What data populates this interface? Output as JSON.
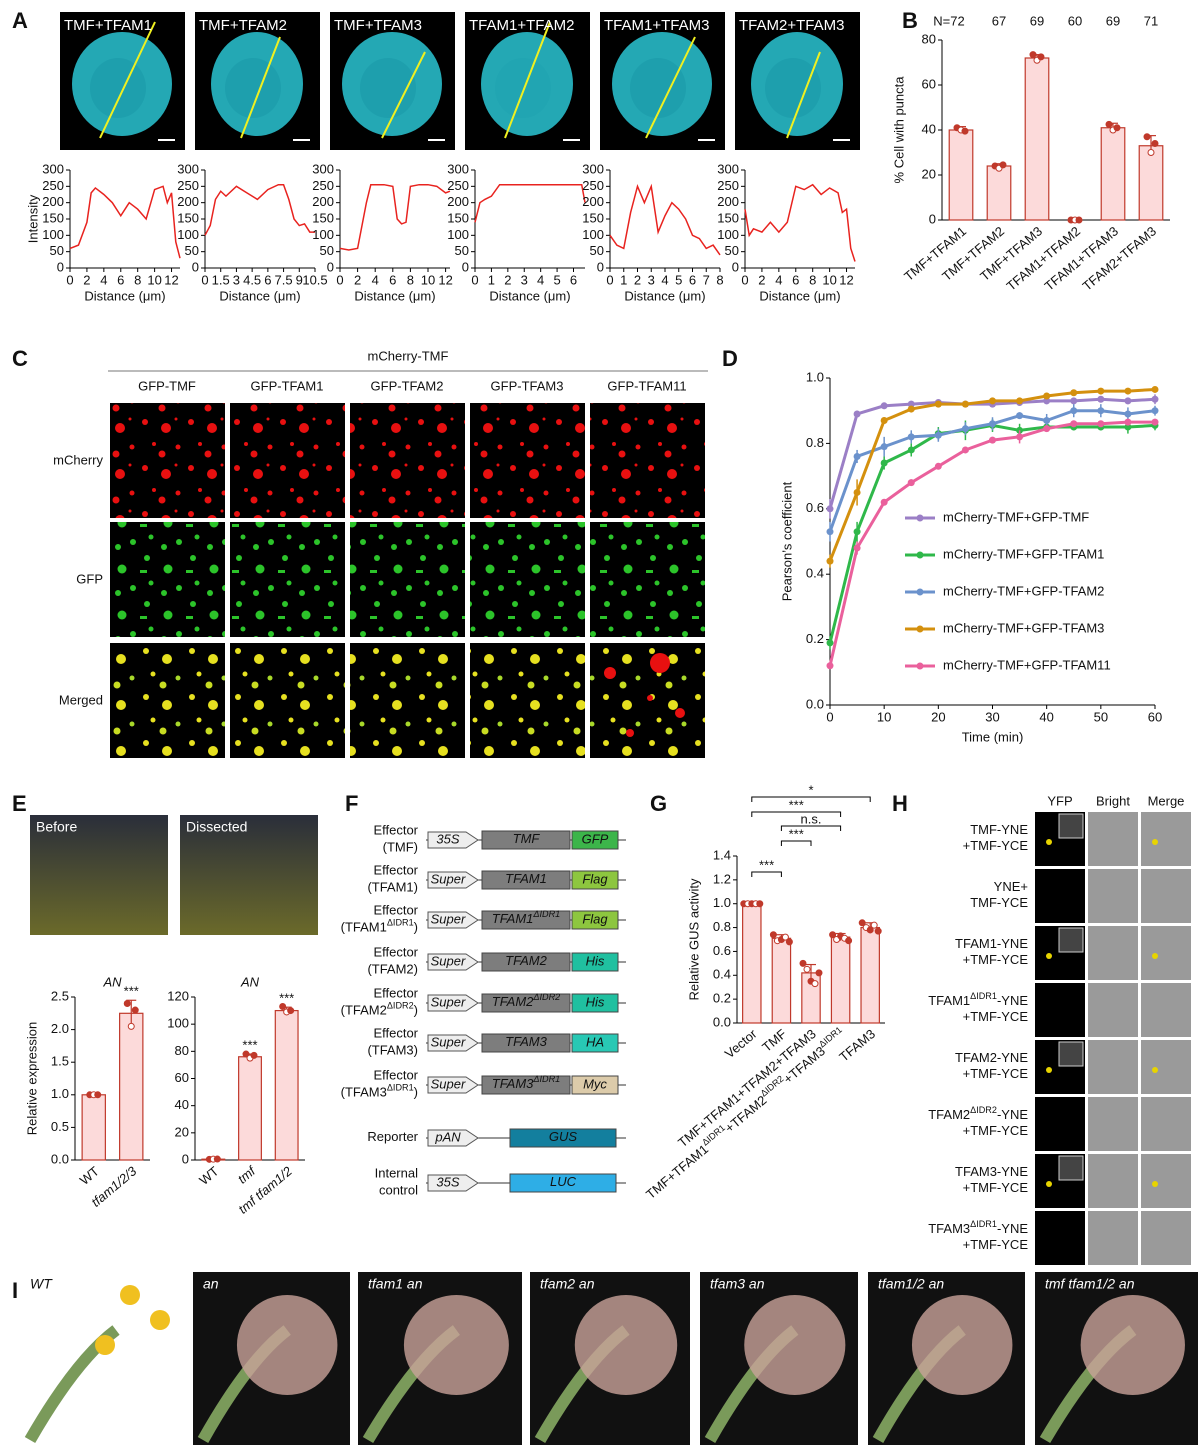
{
  "figure": {
    "panel_letters": [
      "A",
      "B",
      "C",
      "D",
      "E",
      "F",
      "G",
      "H",
      "I"
    ]
  },
  "panel_a": {
    "images": [
      "TMF+TFAM1",
      "TMF+TFAM2",
      "TMF+TFAM3",
      "TFAM1+TFAM2",
      "TFAM1+TFAM3",
      "TFAM2+TFAM3"
    ]
  },
  "panel_c": {
    "header": "mCherry-TMF",
    "columns": [
      "GFP-TMF",
      "GFP-TFAM1",
      "GFP-TFAM2",
      "GFP-TFAM3",
      "GFP-TFAM11"
    ],
    "rows": [
      "mCherry",
      "GFP",
      "Merged"
    ]
  },
  "panel_e": {
    "images": [
      "Before",
      "Dissected"
    ]
  },
  "panel_f": {
    "rows": [
      {
        "label": [
          [
            "Effector"
          ],
          [
            "(TMF)"
          ]
        ],
        "promoter": "35S",
        "gene": [
          "TMF"
        ],
        "tag": "GFP",
        "color": "#3cb54a"
      },
      {
        "label": [
          [
            "Effector"
          ],
          [
            "(TFAM1)"
          ]
        ],
        "promoter": "Super",
        "gene": [
          "TFAM1"
        ],
        "tag": "Flag",
        "color": "#8dc63f"
      },
      {
        "label": [
          [
            "Effector"
          ],
          [
            "(TFAM1",
            {
              "sup": "ΔIDR1"
            },
            ")"
          ]
        ],
        "promoter": "Super",
        "gene": [
          "TFAM1",
          {
            "sup": "ΔIDR1"
          }
        ],
        "tag": "Flag",
        "color": "#8dc63f"
      },
      {
        "label": [
          [
            "Effector"
          ],
          [
            "(TFAM2)"
          ]
        ],
        "promoter": "Super",
        "gene": [
          "TFAM2"
        ],
        "tag": "His",
        "color": "#20c0a0"
      },
      {
        "label": [
          [
            "Effector"
          ],
          [
            "(TFAM2",
            {
              "sup": "ΔIDR2"
            },
            ")"
          ]
        ],
        "promoter": "Super",
        "gene": [
          "TFAM2",
          {
            "sup": "ΔIDR2"
          }
        ],
        "tag": "His",
        "color": "#20c0a0"
      },
      {
        "label": [
          [
            "Effector"
          ],
          [
            "(TFAM3)"
          ]
        ],
        "promoter": "Super",
        "gene": [
          "TFAM3"
        ],
        "tag": "HA",
        "color": "#28c8b4"
      },
      {
        "label": [
          [
            "Effector"
          ],
          [
            "(TFAM3",
            {
              "sup": "ΔIDR1"
            },
            ")"
          ]
        ],
        "promoter": "Super",
        "gene": [
          "TFAM3",
          {
            "sup": "ΔIDR1"
          }
        ],
        "tag": "Myc",
        "color": "#dccbaa"
      },
      {
        "label": [
          [
            "Reporter"
          ]
        ],
        "promoter": "pAN",
        "gene": [
          "GUS"
        ],
        "color": "#137f9e"
      },
      {
        "label": [
          [
            "Internal"
          ],
          [
            "control"
          ]
        ],
        "promoter": "35S",
        "gene": [
          "LUC"
        ],
        "color": "#2eaee6"
      }
    ]
  },
  "panel_h": {
    "columns": [
      "YFP",
      "Bright",
      "Merge"
    ],
    "rows": [
      [
        [
          "TMF-YNE"
        ],
        [
          "+TMF-YCE"
        ]
      ],
      [
        [
          "YNE+"
        ],
        [
          "TMF-YCE"
        ]
      ],
      [
        [
          "TFAM1-YNE"
        ],
        [
          "+TMF-YCE"
        ]
      ],
      [
        [
          "TFAM1",
          {
            "sup": "ΔIDR1"
          },
          "-YNE"
        ],
        [
          "+TMF-YCE"
        ]
      ],
      [
        [
          "TFAM2-YNE"
        ],
        [
          "+TMF-YCE"
        ]
      ],
      [
        [
          "TFAM2",
          {
            "sup": "ΔIDR2"
          },
          "-YNE"
        ],
        [
          "+TMF-YCE"
        ]
      ],
      [
        [
          "TFAM3-YNE"
        ],
        [
          "+TMF-YCE"
        ]
      ],
      [
        [
          "TFAM3",
          {
            "sup": "ΔIDR1"
          },
          "-YNE"
        ],
        [
          "+TMF-YCE"
        ]
      ]
    ]
  },
  "panel_i": {
    "images": [
      "WT",
      "an",
      "tfam1 an",
      "tfam2 an",
      "tfam3 an",
      "tfam1/2 an",
      "tmf tfam1/2 an"
    ]
  },
  "chart_data": [
    {
      "type": "line",
      "ylabel": "Intensity",
      "xlabel": "Distance (μm)",
      "xlim": [
        0,
        13
      ],
      "xticks": [
        0,
        2,
        4,
        6,
        8,
        10,
        12
      ],
      "ylim": [
        0,
        300
      ],
      "yticks": [
        0,
        50,
        100,
        150,
        200,
        250,
        300
      ],
      "x": [
        0,
        1,
        2,
        2.5,
        3,
        4,
        5,
        6,
        7,
        8,
        9,
        10,
        11,
        11.5,
        12,
        12.5,
        13
      ],
      "series": [
        {
          "color": "#e8231f",
          "values": [
            60,
            70,
            140,
            230,
            245,
            225,
            200,
            160,
            200,
            180,
            150,
            240,
            250,
            200,
            230,
            80,
            30
          ]
        }
      ]
    },
    {
      "type": "line",
      "xlabel": "Distance (μm)",
      "xlim": [
        0,
        10.5
      ],
      "xticks": [
        0,
        1.5,
        3,
        4.5,
        6,
        7.5,
        9,
        10.5
      ],
      "ylim": [
        0,
        300
      ],
      "yticks": [
        0,
        50,
        100,
        150,
        200,
        250,
        300
      ],
      "x": [
        0,
        0.5,
        1,
        1.5,
        2,
        3,
        4,
        5,
        6,
        7,
        7.5,
        8,
        8.5,
        9,
        9.5,
        10,
        10.5
      ],
      "series": [
        {
          "color": "#e8231f",
          "values": [
            100,
            130,
            210,
            235,
            220,
            250,
            230,
            210,
            240,
            255,
            255,
            210,
            150,
            130,
            135,
            110,
            110
          ]
        }
      ]
    },
    {
      "type": "line",
      "xlabel": "Distance (μm)",
      "xlim": [
        0,
        12.5
      ],
      "xticks": [
        0,
        2,
        4,
        6,
        8,
        10,
        12
      ],
      "ylim": [
        0,
        300
      ],
      "yticks": [
        0,
        50,
        100,
        150,
        200,
        250,
        300
      ],
      "x": [
        0,
        1,
        2,
        3,
        3.5,
        4,
        5,
        6,
        6.5,
        7,
        7.5,
        8,
        9,
        10,
        11,
        12,
        12.5
      ],
      "series": [
        {
          "color": "#e8231f",
          "values": [
            60,
            55,
            60,
            200,
            255,
            255,
            255,
            250,
            150,
            135,
            140,
            250,
            255,
            255,
            250,
            230,
            235
          ]
        }
      ]
    },
    {
      "type": "line",
      "xlabel": "Distance (μm)",
      "xlim": [
        0,
        6.7
      ],
      "xticks": [
        0,
        1,
        2,
        3,
        4,
        5,
        6
      ],
      "ylim": [
        0,
        300
      ],
      "yticks": [
        0,
        50,
        100,
        150,
        200,
        250,
        300
      ],
      "x": [
        0,
        0.3,
        0.6,
        1,
        1.5,
        2,
        3,
        4,
        5,
        6,
        6.5,
        6.7
      ],
      "series": [
        {
          "color": "#e8231f",
          "values": [
            140,
            200,
            210,
            220,
            255,
            255,
            255,
            255,
            255,
            255,
            255,
            200
          ]
        }
      ]
    },
    {
      "type": "line",
      "xlabel": "Distance (μm)",
      "xlim": [
        0,
        8
      ],
      "xticks": [
        0,
        1,
        2,
        3,
        4,
        5,
        6,
        7,
        8
      ],
      "ylim": [
        0,
        300
      ],
      "yticks": [
        0,
        50,
        100,
        150,
        200,
        250,
        300
      ],
      "x": [
        0,
        0.5,
        1,
        1.5,
        2,
        2.5,
        3,
        3.5,
        4,
        4.5,
        5,
        5.5,
        6,
        6.5,
        7,
        7.5,
        8
      ],
      "series": [
        {
          "color": "#e8231f",
          "values": [
            100,
            70,
            60,
            170,
            250,
            200,
            250,
            110,
            160,
            200,
            180,
            150,
            100,
            90,
            60,
            70,
            40
          ]
        }
      ]
    },
    {
      "type": "line",
      "xlabel": "Distance (μm)",
      "xlim": [
        0,
        13
      ],
      "xticks": [
        0,
        2,
        4,
        6,
        8,
        10,
        12
      ],
      "ylim": [
        0,
        300
      ],
      "yticks": [
        0,
        50,
        100,
        150,
        200,
        250,
        300
      ],
      "x": [
        0,
        0.5,
        1,
        2,
        3,
        4,
        5,
        6,
        7,
        8,
        9,
        10,
        11,
        11.5,
        12,
        12.5,
        13
      ],
      "series": [
        {
          "color": "#e8231f",
          "values": [
            180,
            100,
            120,
            110,
            140,
            110,
            140,
            250,
            240,
            255,
            225,
            245,
            230,
            170,
            180,
            60,
            20
          ]
        }
      ]
    },
    {
      "type": "bar",
      "ylabel": "% Cell with puncta",
      "n_labels": [
        "N=72",
        "67",
        "69",
        "60",
        "69",
        "71"
      ],
      "categories": [
        "TMF+TFAM1",
        "TMF+TFAM2",
        "TMF+TFAM3",
        "TFAM1+TFAM2",
        "TFAM1+TFAM3",
        "TFAM2+TFAM3"
      ],
      "values": [
        40,
        24,
        72,
        0,
        41,
        33
      ],
      "errors": [
        1.5,
        1,
        1.5,
        0,
        2,
        4.5
      ],
      "points": [
        [
          41,
          40,
          39.5
        ],
        [
          24,
          23,
          24.5
        ],
        [
          73.5,
          71,
          72.5
        ],
        [
          0,
          0,
          0
        ],
        [
          42.5,
          40,
          41
        ],
        [
          37,
          30,
          34
        ]
      ],
      "color": "#fcdada",
      "edge_color": "#c0392b",
      "ylim": [
        0,
        80
      ],
      "yticks": [
        0,
        20,
        40,
        60,
        80
      ]
    },
    {
      "type": "line",
      "ylabel": "Pearson’s coefficient",
      "xlabel": "Time (min)",
      "xlim": [
        0,
        60
      ],
      "xticks": [
        0,
        10,
        20,
        30,
        40,
        50,
        60
      ],
      "ylim": [
        0,
        1
      ],
      "yticks": [
        {
          "value": 0,
          "label": "0.0"
        },
        0.2,
        0.4,
        0.6,
        0.8,
        {
          "value": 1,
          "label": "1.0"
        }
      ],
      "markers": true,
      "x": [
        0,
        5,
        10,
        15,
        20,
        25,
        30,
        35,
        40,
        45,
        50,
        55,
        60
      ],
      "series": [
        {
          "name": "mCherry-TMF+GFP-TMF",
          "color": "#9b7fc6",
          "values": [
            0.6,
            0.89,
            0.915,
            0.92,
            0.925,
            0.92,
            0.92,
            0.925,
            0.93,
            0.93,
            0.935,
            0.93,
            0.935
          ],
          "errors": [
            0.03,
            0.01,
            0.01,
            0.01,
            0.005,
            0.01,
            0.01,
            0.01,
            0.01,
            0.01,
            0.01,
            0.01,
            0.015
          ]
        },
        {
          "name": "mCherry-TMF+GFP-TFAM1",
          "color": "#2fb84a",
          "values": [
            0.19,
            0.53,
            0.74,
            0.78,
            0.83,
            0.84,
            0.855,
            0.84,
            0.85,
            0.85,
            0.85,
            0.85,
            0.855
          ],
          "errors": [
            0.02,
            0.03,
            0.02,
            0.02,
            0.02,
            0.03,
            0.02,
            0.02,
            0.01,
            0.01,
            0.01,
            0.02,
            0.015
          ]
        },
        {
          "name": "mCherry-TMF+GFP-TFAM2",
          "color": "#6b92cc",
          "values": [
            0.53,
            0.76,
            0.79,
            0.82,
            0.825,
            0.845,
            0.86,
            0.885,
            0.87,
            0.9,
            0.9,
            0.89,
            0.9
          ],
          "errors": [
            0.03,
            0.02,
            0.03,
            0.02,
            0.02,
            0.02,
            0.02,
            0.01,
            0.02,
            0.02,
            0.02,
            0.02,
            0.015
          ]
        },
        {
          "name": "mCherry-TMF+GFP-TFAM3",
          "color": "#d4900e",
          "values": [
            0.44,
            0.65,
            0.87,
            0.905,
            0.92,
            0.92,
            0.93,
            0.93,
            0.945,
            0.955,
            0.96,
            0.96,
            0.965
          ],
          "errors": [
            0.02,
            0.04,
            0.01,
            0.01,
            0.01,
            0.01,
            0.01,
            0.01,
            0.01,
            0.005,
            0.005,
            0.005,
            0.005
          ]
        },
        {
          "name": "mCherry-TMF+GFP-TFAM11",
          "color": "#ea609c",
          "values": [
            0.12,
            0.48,
            0.62,
            0.68,
            0.73,
            0.78,
            0.81,
            0.82,
            0.845,
            0.86,
            0.86,
            0.865,
            0.865
          ],
          "errors": [
            0.01,
            0.02,
            0.01,
            0.01,
            0.01,
            0.01,
            0.01,
            0.02,
            0.01,
            0.01,
            0.01,
            0.01,
            0.01
          ]
        }
      ]
    },
    {
      "type": "bar",
      "title": "AN",
      "ylabel": "Relative expression",
      "categories": [
        "WT",
        "tfam1/2/3"
      ],
      "values": [
        1,
        2.25
      ],
      "errors": [
        0.01,
        0.2
      ],
      "points": [
        [
          1,
          1,
          1
        ],
        [
          2.4,
          2.05,
          2.3
        ]
      ],
      "significance": [
        null,
        "***"
      ],
      "color": "#fcdada",
      "edge_color": "#c0392b",
      "ylim": [
        0,
        2.5
      ],
      "yticks": [
        {
          "value": 0,
          "label": "0.0"
        },
        0.5,
        {
          "value": 1,
          "label": "1.0"
        },
        1.5,
        {
          "value": 2,
          "label": "2.0"
        },
        2.5
      ]
    },
    {
      "type": "bar",
      "title": "AN",
      "categories": [
        "WT",
        "tmf",
        "tmf tfam1/2"
      ],
      "values": [
        0.6,
        76,
        110
      ],
      "errors": [
        0.3,
        2,
        2.5
      ],
      "points": [
        [
          0.5,
          0.6,
          0.7
        ],
        [
          78,
          75,
          77
        ],
        [
          113,
          109,
          110
        ]
      ],
      "significance": [
        null,
        "***",
        "***"
      ],
      "color": "#fcdada",
      "edge_color": "#c0392b",
      "ylim": [
        0,
        120
      ],
      "yticks": [
        0,
        20,
        40,
        60,
        80,
        100,
        120
      ]
    },
    {
      "type": "bar",
      "ylabel": "Relative GUS activity",
      "categories": [
        [
          "Vector"
        ],
        [
          "TMF"
        ],
        [
          "TMF+TFAM1+TFAM2+TFAM3"
        ],
        [
          "TMF+TFAM1",
          {
            "sup": "ΔIDR1"
          },
          "+TFAM2",
          {
            "sup": "ΔIDR2"
          },
          "+TFAM3",
          {
            "sup": "ΔIDR1"
          }
        ],
        [
          "TFAM3"
        ]
      ],
      "values": [
        1,
        0.71,
        0.42,
        0.72,
        0.8
      ],
      "errors": [
        0.01,
        0.03,
        0.07,
        0.03,
        0.04
      ],
      "points": [
        [
          1,
          1,
          1,
          1,
          1
        ],
        [
          0.74,
          0.69,
          0.7,
          0.72,
          0.68
        ],
        [
          0.5,
          0.45,
          0.35,
          0.33,
          0.42
        ],
        [
          0.74,
          0.7,
          0.73,
          0.71,
          0.69
        ],
        [
          0.84,
          0.8,
          0.78,
          0.82,
          0.77
        ]
      ],
      "brackets": [
        {
          "label": "*",
          "from": 0,
          "to": 4
        },
        {
          "label": "***",
          "from": 0,
          "to": 3
        },
        {
          "label": "n.s.",
          "from": 1,
          "to": 3
        },
        {
          "label": "***",
          "from": 1,
          "to": 2
        },
        {
          "label": "***",
          "from": 0,
          "to": 1
        }
      ],
      "color": "#fcdada",
      "edge_color": "#c0392b",
      "ylim": [
        0,
        1.4
      ],
      "yticks": [
        {
          "value": 0,
          "label": "0.0"
        },
        0.2,
        0.4,
        0.6,
        0.8,
        {
          "value": 1,
          "label": "1.0"
        },
        1.2,
        1.4
      ]
    }
  ]
}
